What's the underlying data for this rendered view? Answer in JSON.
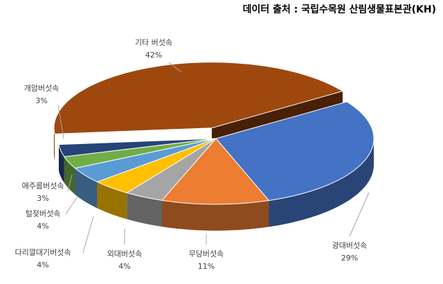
{
  "chart_data": {
    "type": "pie3d",
    "title": "데이터 출처 : 국립수목원 산림생물표본관(KH)",
    "categories": [
      "광대버섯속",
      "무당버섯속",
      "외대버섯속",
      "다리깔대기버섯속",
      "털젖버섯속",
      "애주름버섯속",
      "개암버섯속",
      "기타 버섯속"
    ],
    "values": [
      29,
      11,
      4,
      4,
      4,
      3,
      3,
      42
    ],
    "value_labels": [
      "29%",
      "11%",
      "4%",
      "4%",
      "4%",
      "3%",
      "3%",
      "42%"
    ],
    "colors": [
      "#4472c4",
      "#ed7d31",
      "#a5a5a5",
      "#ffc000",
      "#5b9bd5",
      "#70ad47",
      "#264478",
      "#9e480e"
    ]
  }
}
